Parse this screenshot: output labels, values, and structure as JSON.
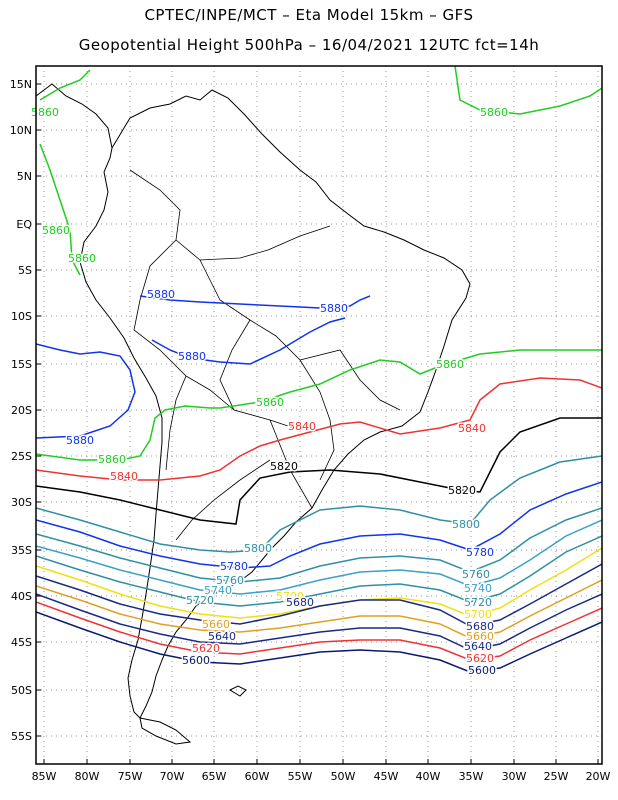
{
  "title_line1": "CPTEC/INPE/MCT –  Eta Model 15km – GFS",
  "title_line2": "Geopotential Height 500hPa – 16/04/2021 12UTC fct=14h",
  "lat_ticks": [
    "15N",
    "10N",
    "5N",
    "EQ",
    "5S",
    "10S",
    "15S",
    "20S",
    "25S",
    "30S",
    "35S",
    "40S",
    "45S",
    "50S",
    "55S"
  ],
  "lon_ticks": [
    "85W",
    "80W",
    "75W",
    "70W",
    "65W",
    "60W",
    "55W",
    "50W",
    "45W",
    "40W",
    "35W",
    "30W",
    "25W",
    "20W"
  ],
  "contours": [
    {
      "value": "5880",
      "color": "#1133ee"
    },
    {
      "value": "5860",
      "color": "#22cc22"
    },
    {
      "value": "5840",
      "color": "#ee3333"
    },
    {
      "value": "5820",
      "color": "#000000"
    },
    {
      "value": "5800",
      "color": "#2e8fa6"
    },
    {
      "value": "5780",
      "color": "#1133ee"
    },
    {
      "value": "5760",
      "color": "#2e8fa6"
    },
    {
      "value": "5740",
      "color": "#3aa0c8"
    },
    {
      "value": "5720",
      "color": "#2e8fa6"
    },
    {
      "value": "5700",
      "color": "#f0e010"
    },
    {
      "value": "5680",
      "color": "#1a2a80"
    },
    {
      "value": "5660",
      "color": "#e0a020"
    },
    {
      "value": "5640",
      "color": "#1a2a80"
    },
    {
      "value": "5620",
      "color": "#ee3333"
    },
    {
      "value": "5600",
      "color": "#0a1a70"
    }
  ]
}
